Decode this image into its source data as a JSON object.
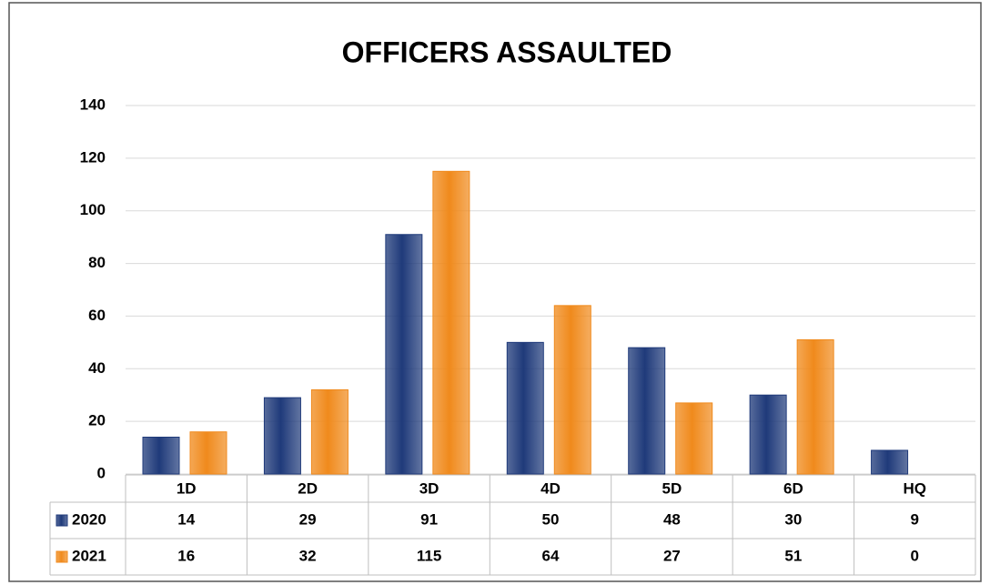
{
  "chart_data": {
    "type": "bar",
    "title": "OFFICERS ASSAULTED",
    "categories": [
      "1D",
      "2D",
      "3D",
      "4D",
      "5D",
      "6D",
      "HQ"
    ],
    "series": [
      {
        "name": "2020",
        "color": "#1f3a7a",
        "values": [
          14,
          29,
          91,
          50,
          48,
          30,
          9
        ]
      },
      {
        "name": "2021",
        "color": "#f08a1c",
        "values": [
          16,
          32,
          115,
          64,
          27,
          51,
          0
        ]
      }
    ],
    "ylim": [
      0,
      140
    ],
    "yticks": [
      0,
      20,
      40,
      60,
      80,
      100,
      120,
      140
    ],
    "grid": true
  }
}
